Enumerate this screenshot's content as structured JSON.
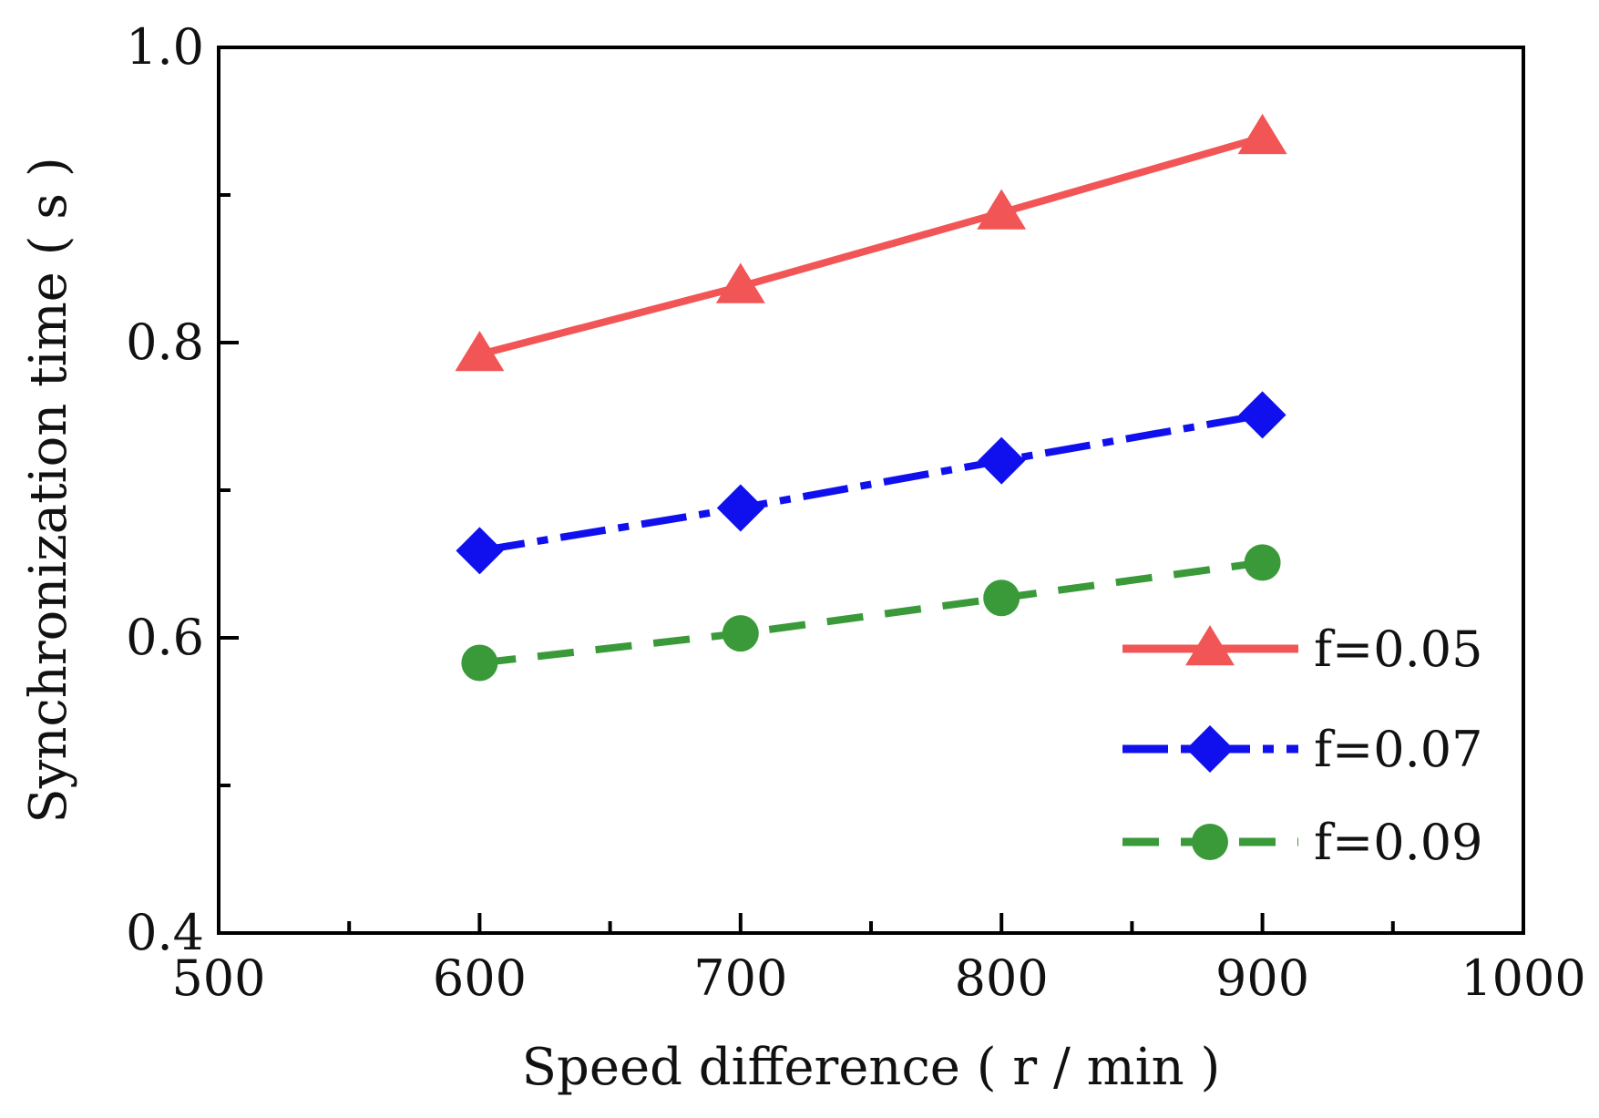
{
  "chart_data": {
    "type": "line",
    "title": "",
    "xlabel": "Speed difference ( r / min )",
    "ylabel": "Synchronization time ( s )",
    "xlim": [
      500,
      1000
    ],
    "ylim": [
      0.4,
      1.0
    ],
    "x_ticks": [
      500,
      600,
      700,
      800,
      900,
      1000
    ],
    "x_tick_labels": [
      "500",
      "600",
      "700",
      "800",
      "900",
      "1000"
    ],
    "x_minor_ticks": [
      550,
      650,
      750,
      850,
      950
    ],
    "y_ticks": [
      0.4,
      0.6,
      0.8,
      1.0
    ],
    "y_tick_labels": [
      "0.4",
      "0.6",
      "0.8",
      "1.0"
    ],
    "y_minor_ticks": [
      0.5,
      0.7,
      0.9
    ],
    "grid": false,
    "legend_position": "bottom-right",
    "x": [
      600,
      700,
      800,
      900
    ],
    "series": [
      {
        "name": "f=0.05",
        "values": [
          0.792,
          0.838,
          0.888,
          0.939
        ],
        "color": "#f25555",
        "marker": "triangle",
        "line_style": "solid"
      },
      {
        "name": "f=0.07",
        "values": [
          0.659,
          0.688,
          0.72,
          0.751
        ],
        "color": "#1010ee",
        "marker": "diamond",
        "line_style": "dash-dot"
      },
      {
        "name": "f=0.09",
        "values": [
          0.583,
          0.603,
          0.627,
          0.651
        ],
        "color": "#3a9a3a",
        "marker": "circle",
        "line_style": "dashed"
      }
    ]
  }
}
